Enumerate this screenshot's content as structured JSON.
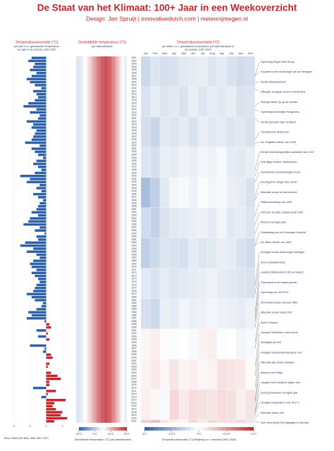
{
  "title": "De Staat van het Klimaat: 100+ Jaar in een Weekoverzicht",
  "subtitle": "Design: Jan Spruijt | innovativedutch.com | meteonijmegen.nl",
  "source": "Bron: KNMI (De Bilt), data 1901-2021",
  "chart_data": [
    {
      "type": "hbar",
      "title": "Temperatuuranomalie (°C)",
      "subtitle": "per jaar t.o.v. gemiddelde temperatuur per jaar in de periode 1991-2020",
      "categories": [
        "1901",
        "1902",
        "1903",
        "1904",
        "1905",
        "1906",
        "1907",
        "1908",
        "1909",
        "1910",
        "1911",
        "1912",
        "1913",
        "1914",
        "1915",
        "1916",
        "1917",
        "1918",
        "1919",
        "1920",
        "1921",
        "1922",
        "1923",
        "1924",
        "1925",
        "1926",
        "1927",
        "1928",
        "1929",
        "1930",
        "1931",
        "1932",
        "1933",
        "1934",
        "1935",
        "1936",
        "1937",
        "1938",
        "1939",
        "1940",
        "1941",
        "1942",
        "1943",
        "1944",
        "1945",
        "1946",
        "1947",
        "1948",
        "1949",
        "1950",
        "1951",
        "1952",
        "1953",
        "1954",
        "1955",
        "1956",
        "1957",
        "1958",
        "1959",
        "1960",
        "1961",
        "1962",
        "1963",
        "1964",
        "1965",
        "1966",
        "1967",
        "1968",
        "1969",
        "1970",
        "1971",
        "1972",
        "1973",
        "1974",
        "1975",
        "1976",
        "1977",
        "1978",
        "1979",
        "1980",
        "1981",
        "1982",
        "1983",
        "1984",
        "1985",
        "1986",
        "1987",
        "1988",
        "1989",
        "1990",
        "1991",
        "1992",
        "1993",
        "1994",
        "1995",
        "1996",
        "1997",
        "1998",
        "1999",
        "2000",
        "2001",
        "2002",
        "2003",
        "2004",
        "2005",
        "2006",
        "2007",
        "2008",
        "2009",
        "2010",
        "2011",
        "2012",
        "2013",
        "2014",
        "2015",
        "2016",
        "2017",
        "2018",
        "2019",
        "2020",
        "2021"
      ],
      "values": [
        -0.9,
        -1.1,
        -0.7,
        -0.8,
        -1.0,
        -0.6,
        -0.9,
        -1.2,
        -1.0,
        -0.7,
        -0.3,
        -0.8,
        -0.6,
        -0.5,
        -0.7,
        -1.1,
        -1.4,
        -0.6,
        -1.0,
        -0.4,
        -0.5,
        -1.2,
        -0.8,
        -0.9,
        -0.6,
        -0.7,
        -0.8,
        -0.9,
        -1.3,
        -0.4,
        -0.9,
        -0.7,
        -0.5,
        -0.2,
        -0.6,
        -0.8,
        -0.5,
        -0.3,
        -0.7,
        -1.6,
        -1.0,
        -1.2,
        -0.4,
        -0.6,
        -0.3,
        -0.8,
        -0.5,
        -0.2,
        -0.4,
        -0.5,
        -0.6,
        -0.9,
        -0.5,
        -1.0,
        -1.1,
        -1.4,
        -0.4,
        -0.7,
        -0.1,
        -0.6,
        -0.5,
        -1.3,
        -1.6,
        -0.8,
        -1.2,
        -0.6,
        -0.4,
        -0.8,
        -1.0,
        -0.9,
        -0.6,
        -0.9,
        -0.7,
        -0.5,
        -0.4,
        -0.6,
        -0.7,
        -0.8,
        -1.2,
        -0.9,
        -0.7,
        -0.2,
        -0.3,
        -0.6,
        -1.1,
        -0.9,
        -1.2,
        -0.1,
        0.2,
        0.3,
        -0.6,
        0.1,
        -0.5,
        0.2,
        0.0,
        -1.0,
        -0.1,
        -0.2,
        0.3,
        0.4,
        0.0,
        0.2,
        0.1,
        0.0,
        0.3,
        0.7,
        0.9,
        0.2,
        0.2,
        -0.8,
        0.6,
        0.1,
        -0.3,
        1.2,
        0.5,
        0.4,
        0.6,
        1.0,
        0.9,
        1.3,
        0.5
      ],
      "neg_color": "#2b5fa8",
      "pos_color": "#c0262b",
      "xlim": [
        -2.5,
        1.5
      ],
      "xticks": [
        -2,
        -1,
        0,
        1
      ]
    },
    {
      "type": "heat-columns",
      "title": "Gemiddelde temperatuur (°C)",
      "subtitle": "per kalenderweek",
      "values": [
        2.8,
        2.5,
        2.4,
        2.6,
        2.9,
        3.2,
        3.6,
        4.1,
        4.6,
        5.2,
        5.8,
        6.4,
        7.0,
        7.6,
        8.2,
        8.9,
        9.6,
        10.4,
        11.2,
        12.0,
        12.8,
        13.5,
        14.2,
        14.8,
        15.4,
        15.9,
        16.4,
        16.8,
        17.1,
        17.3,
        17.4,
        17.3,
        17.1,
        16.7,
        16.2,
        15.6,
        14.9,
        14.1,
        13.3,
        12.4,
        11.5,
        10.6,
        9.7,
        8.8,
        7.9,
        7.0,
        6.1,
        5.3,
        4.6,
        4.0,
        3.5,
        3.1
      ],
      "clim": [
        -10,
        20
      ],
      "legend_title": "Gemiddelde temperatuur (°C) per kalenderweek",
      "legend_ticks": [
        {
          "value": -10,
          "label": "-10°C"
        },
        {
          "value": 0,
          "label": "0°C"
        },
        {
          "value": 10,
          "label": "10°C"
        },
        {
          "value": 20,
          "label": "20°C"
        }
      ]
    },
    {
      "type": "heatmap",
      "title": "Temperatuuranomalie (°C)",
      "subtitle": "per week t.o.v. gemiddelde temperatuur per kalenderweek in de periode 1991-2020",
      "categories": [
        "Jan",
        "Feb",
        "Mar",
        "Apr",
        "Mei",
        "Jun",
        "Jul",
        "Aug",
        "Sep",
        "Okt",
        "Nov",
        "Dec"
      ],
      "values": [
        [
          -1.2,
          -0.8,
          -1.0,
          -0.9,
          -0.7,
          -0.6,
          -0.5,
          -0.8,
          -0.6,
          -0.9,
          -1.1,
          -1.0
        ],
        [
          -0.9,
          -0.6,
          -0.8,
          -0.7,
          -0.9,
          -0.5,
          -0.8,
          -0.6,
          -0.7,
          -0.5,
          -0.9,
          -0.8
        ],
        [
          -1.0,
          -1.3,
          -0.7,
          -0.8,
          -0.6,
          -0.9,
          -0.5,
          -0.7,
          -0.6,
          -0.8,
          -0.7,
          -0.9
        ],
        [
          -0.8,
          -1.0,
          -0.5,
          -0.6,
          -0.4,
          -0.5,
          -0.3,
          -0.4,
          -0.2,
          -0.6,
          -0.7,
          -0.5
        ],
        [
          -2.0,
          -1.5,
          -0.7,
          -0.3,
          -0.2,
          -0.4,
          -0.1,
          -0.3,
          -0.2,
          -0.5,
          -0.6,
          -0.9
        ],
        [
          -1.1,
          -1.4,
          -0.9,
          -0.7,
          -0.6,
          -0.5,
          -0.4,
          -0.6,
          -0.3,
          -0.7,
          -0.6,
          -0.8
        ],
        [
          -1.5,
          -1.2,
          -0.8,
          -0.9,
          -1.0,
          -0.6,
          -0.8,
          -0.7,
          -0.5,
          -0.6,
          -0.9,
          -1.1
        ],
        [
          -0.7,
          -0.9,
          -0.6,
          -0.8,
          -0.7,
          -0.6,
          -0.5,
          -0.4,
          -0.6,
          -0.7,
          -0.8,
          -0.9
        ],
        [
          -1.0,
          -1.2,
          -0.5,
          -0.6,
          -0.3,
          -0.5,
          -0.4,
          -0.3,
          -0.4,
          -0.5,
          -0.6,
          -0.4
        ],
        [
          0.2,
          0.4,
          0.1,
          -0.1,
          0.0,
          -0.2,
          0.3,
          0.4,
          -0.1,
          0.0,
          -0.3,
          -0.2
        ],
        [
          0.3,
          0.5,
          0.2,
          0.6,
          0.3,
          0.4,
          0.2,
          0.3,
          0.7,
          0.6,
          0.5,
          0.1
        ],
        [
          0.4,
          0.2,
          -0.2,
          0.9,
          0.5,
          0.8,
          0.7,
          0.6,
          0.8,
          0.7,
          0.4,
          0.6
        ],
        [
          1.1,
          1.5,
          0.6,
          0.4,
          0.2,
          0.9,
          0.5,
          1.0,
          0.8,
          0.7,
          0.9,
          0.6
        ]
      ],
      "clim": [
        -5,
        5
      ],
      "legend_title": "Temperatuuranomalie (°C) afwijking t.o.v. normaal (1991-2020)",
      "legend_ticks": [
        {
          "value": -5,
          "label": "-5°C"
        },
        {
          "value": -2.5,
          "label": "-2,5°C"
        },
        {
          "value": 0,
          "label": "0°C"
        },
        {
          "value": 2.5,
          "label": "+2,5°C"
        },
        {
          "value": 5,
          "label": "+5°C"
        }
      ]
    }
  ],
  "annotations": [
    {
      "year": "1907",
      "text": "Oprichting Royal Shell Group"
    },
    {
      "year": "1907",
      "text": "Koudste zomer sinds begin van de metingen"
    },
    {
      "year": "1909",
      "text": "Eerste Elfstedentocht"
    },
    {
      "year": "1911",
      "text": "Hittegolf, droogste zomer in Nederland"
    },
    {
      "year": "1917",
      "text": "Strenge winter, ijs op de rivieren"
    },
    {
      "year": "1918",
      "text": "Oprichting Koninklijke Hoogovens"
    },
    {
      "year": "1921",
      "text": "Eerste Spoorlijn naar Schiphol"
    },
    {
      "year": "1928",
      "text": "Tornadoramp bij Borculo"
    },
    {
      "year": "1929",
      "text": "De 'Vergeten Winter' van 1929"
    },
    {
      "year": "1938",
      "text": "Eerste wetenschappelijke publicatie over CO2"
    },
    {
      "year": "1940",
      "text": "Drie Ijzige winters, Watersnood"
    },
    {
      "year": "1942",
      "text": "Gemiddelde sneeuwhoogte record"
    },
    {
      "year": "1947",
      "text": "Koudegolf en droge hete zomer"
    },
    {
      "year": "1948",
      "text": "Warmste zomer tot dat moment"
    },
    {
      "year": "1953",
      "text": "Watersnoodramp van 1953"
    },
    {
      "year": "1956",
      "text": "Februari: koudste maand sinds 1929"
    },
    {
      "year": "1959",
      "text": "Record zonnigste jaar"
    },
    {
      "year": "1963",
      "text": "Ontdekking van het Groninger Gasveld"
    },
    {
      "year": "1963",
      "text": "De 'Barre Winter van 1963'"
    },
    {
      "year": "1976",
      "text": "Droogste zomer sinds begin metingen"
    },
    {
      "year": "1979",
      "text": "Storm (orkaankracht)"
    },
    {
      "year": "1985",
      "text": "Laatste Elfstedentocht (tot op heden)"
    },
    {
      "year": "1987",
      "text": "Sneeuwval in de maand januari"
    },
    {
      "year": "1988",
      "text": "Oprichting van het IPCC"
    },
    {
      "year": "1990",
      "text": "Stormvloed Daria, februari 1990"
    },
    {
      "year": "1995",
      "text": "Warmste zomer sinds 1947"
    },
    {
      "year": "1997",
      "text": "Kyoto Protocol"
    },
    {
      "year": "2003",
      "text": "Tornado Gelderland, hete zomer"
    },
    {
      "year": "2006",
      "text": "Zonnigste juli ooit"
    },
    {
      "year": "2010",
      "text": "Hoogste maximumtemperatuur ooit"
    },
    {
      "year": "2014",
      "text": "Warmste jaar sinds metingen"
    },
    {
      "year": "2015",
      "text": "Akkoord van Parijs"
    },
    {
      "year": "2018",
      "text": "Langste hete tropische dagen ooit"
    },
    {
      "year": "2018",
      "text": "Zomergeneeuwen droogste jaar"
    },
    {
      "year": "2019",
      "text": "Hoogste temperatuur ooit: 40,7°C"
    },
    {
      "year": "2020",
      "text": "Warmste winter ooit"
    },
    {
      "year": "2021",
      "text": "Voor eerst sinds 2013 ijsdagen in februari"
    }
  ]
}
